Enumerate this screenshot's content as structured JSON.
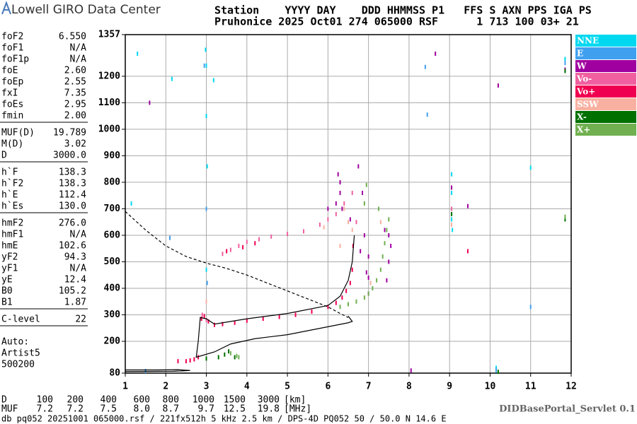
{
  "header": {
    "logo": "Lowell GIRO Data Center",
    "line1": "Station    YYYY DAY    DDD HHMMSS P1   FFS S AXN PPS IGA PS",
    "line2": "Pruhonice 2025 Oct01 274 065000 RSF      1 713 100 03+ 21"
  },
  "parameters": [
    [
      [
        "foF2",
        "6.550"
      ],
      [
        "foF1",
        "N/A"
      ],
      [
        "foF1p",
        "N/A"
      ],
      [
        "foE",
        "2.60"
      ],
      [
        "foEp",
        "2.55"
      ],
      [
        "fxI",
        "7.35"
      ],
      [
        "foEs",
        "2.95"
      ],
      [
        "fmin",
        "2.00"
      ]
    ],
    [
      [
        "MUF(D)",
        "19.789"
      ],
      [
        "M(D)",
        "3.02"
      ],
      [
        "D",
        "3000.0"
      ]
    ],
    [
      [
        "h`F",
        "138.3"
      ],
      [
        "h`F2",
        "138.3"
      ],
      [
        "h`E",
        "112.4"
      ],
      [
        "h`Es",
        "130.0"
      ]
    ],
    [
      [
        "hmF2",
        "276.0"
      ],
      [
        "hmF1",
        "N/A"
      ],
      [
        "hmE",
        "102.6"
      ],
      [
        "yF2",
        "94.3"
      ],
      [
        "yF1",
        "N/A"
      ],
      [
        "yE",
        "12.4"
      ],
      [
        "B0",
        "105.2"
      ],
      [
        "B1",
        "1.87"
      ]
    ],
    [
      [
        "C-level",
        "22"
      ]
    ]
  ],
  "autoscaling": [
    "Auto:",
    "Artist5",
    "500200"
  ],
  "chart_data": {
    "type": "scatter",
    "xlim": [
      1,
      12
    ],
    "xticks": [
      1,
      2,
      3,
      4,
      5,
      6,
      7,
      8,
      9,
      10,
      11,
      12
    ],
    "ylim": [
      80,
      1357
    ],
    "yticks": [
      80,
      200,
      300,
      400,
      500,
      600,
      700,
      800,
      900,
      1000,
      1100,
      1200,
      1357
    ],
    "grid": true,
    "legend": "right",
    "series": [
      {
        "name": "NNE",
        "color": "#00d8f0",
        "x": [
          1.3,
          2.98,
          3.0,
          3.0,
          3.02,
          3.0,
          3.18,
          9.05,
          9.05,
          9.05,
          9.07,
          10.15,
          10.15,
          11.0,
          11.85,
          1.15,
          2.15
        ],
        "values": [
          1285,
          1300,
          1240,
          1050,
          860,
          470,
          1185,
          830,
          760,
          660,
          620,
          100,
          90,
          855,
          1265,
          720,
          1190
        ]
      },
      {
        "name": "E",
        "color": "#40a0f0",
        "x": [
          2.95,
          3.0,
          3.02,
          2.1,
          8.4,
          8.45,
          11.0,
          11.85,
          10.15,
          1.5
        ],
        "values": [
          1240,
          700,
          420,
          590,
          1235,
          1055,
          330,
          1250,
          92,
          88
        ]
      },
      {
        "name": "W",
        "color": "#a000a0",
        "x": [
          1.6,
          9.45,
          10.2,
          11.85,
          6.3,
          6.0,
          6.55,
          9.05,
          8.65,
          6.75,
          6.85,
          6.9,
          7.0,
          7.0,
          7.0,
          7.45,
          7.5,
          7.55,
          7.5,
          7.4,
          6.35,
          6.3,
          8.05,
          6.2,
          6.25,
          6.8,
          6.95
        ],
        "values": [
          1100,
          710,
          1165,
          1225,
          800,
          700,
          660,
          780,
          1285,
          860,
          760,
          600,
          520,
          440,
          380,
          430,
          500,
          560,
          600,
          620,
          700,
          760,
          90,
          720,
          830,
          540,
          460
        ]
      },
      {
        "name": "Vo-",
        "color": "#f060a0",
        "x": [
          3.4,
          3.6,
          3.8,
          4.0,
          4.3,
          4.6,
          5.0,
          5.4,
          5.8,
          6.0,
          6.2,
          6.4,
          6.6,
          6.7,
          2.9,
          3.0,
          9.05
        ],
        "values": [
          530,
          545,
          560,
          575,
          585,
          595,
          605,
          615,
          640,
          660,
          680,
          720,
          760,
          650,
          300,
          280,
          700
        ]
      },
      {
        "name": "Vo+",
        "color": "#f00050",
        "x": [
          2.88,
          2.95,
          3.05,
          3.2,
          3.4,
          3.7,
          4.0,
          4.4,
          4.8,
          5.2,
          5.6,
          6.0,
          6.2,
          6.35,
          6.45,
          6.55,
          6.6,
          6.62,
          2.3,
          2.5,
          2.6,
          2.7,
          2.8,
          3.5,
          3.9,
          4.2,
          9.45
        ],
        "values": [
          285,
          295,
          275,
          262,
          265,
          270,
          278,
          285,
          292,
          300,
          312,
          330,
          345,
          365,
          390,
          420,
          470,
          560,
          125,
          125,
          128,
          132,
          140,
          540,
          555,
          570,
          540
        ]
      },
      {
        "name": "SSW",
        "color": "#f8b0a0",
        "x": [
          6.4,
          6.5,
          6.6,
          6.3,
          5.9,
          7.05,
          7.3,
          3.0,
          9.05
        ],
        "values": [
          700,
          650,
          620,
          560,
          630,
          420,
          650,
          350,
          640
        ]
      },
      {
        "name": "X-",
        "color": "#007000",
        "x": [
          3.3,
          3.45,
          3.55,
          3.7,
          3.0,
          9.05,
          11.85,
          11.85,
          10.2
        ],
        "values": [
          140,
          150,
          162,
          140,
          135,
          680,
          1220,
          660,
          85
        ]
      },
      {
        "name": "X+",
        "color": "#70b050",
        "x": [
          6.3,
          6.5,
          6.7,
          6.9,
          7.0,
          7.1,
          7.2,
          7.3,
          7.35,
          7.4,
          7.45,
          7.5,
          6.9,
          6.95,
          7.25,
          11.85,
          3.6,
          3.75,
          3.8
        ],
        "values": [
          330,
          340,
          350,
          365,
          380,
          400,
          430,
          470,
          520,
          570,
          620,
          660,
          720,
          790,
          700,
          670,
          155,
          145,
          140
        ]
      }
    ],
    "lines": [
      {
        "color": "#000000",
        "x": [
          6.65,
          6.6,
          6.5,
          6.3,
          6.0,
          5.0,
          4.0,
          3.2,
          3.0,
          2.85,
          2.8,
          2.75,
          3.2,
          3.6,
          4.2,
          5.0,
          6.0,
          6.5,
          6.6,
          6.5
        ],
        "values": [
          600,
          500,
          430,
          370,
          335,
          305,
          285,
          265,
          285,
          290,
          200,
          140,
          160,
          190,
          210,
          225,
          255,
          270,
          275,
          295
        ]
      },
      {
        "color": "#000000",
        "x": [
          1.0,
          2.2,
          2.6,
          2.3,
          1.8,
          1.0
        ],
        "values": [
          86,
          87,
          90,
          93,
          92,
          92
        ]
      },
      {
        "color": "#000000",
        "dash": true,
        "x": [
          1.0,
          1.5,
          2.0,
          2.5,
          3.0,
          3.5,
          4.0,
          4.5,
          5.0,
          5.5,
          6.0,
          6.3,
          6.5
        ],
        "values": [
          690,
          620,
          560,
          520,
          495,
          475,
          450,
          420,
          390,
          360,
          330,
          305,
          290
        ]
      }
    ]
  },
  "footer": {
    "d_label": "D",
    "d_values": [
      "100",
      "200",
      "400",
      "600",
      "800",
      "1000",
      "1500",
      "3000"
    ],
    "d_unit": "[km]",
    "muf_label": "MUF",
    "muf_values": [
      "7.2",
      "7.2",
      "7.5",
      "8.0",
      "8.7",
      "9.7",
      "12.5",
      "19.8"
    ],
    "muf_unit": "[MHz]",
    "servlet": "DIDBasePortal_Servlet 0.1",
    "info": "db pq052 20251001 065000.rsf / 221fx512h 5 kHz 2.5 km / DPS-4D PQ052 50 / 50.0 N 14.6 E"
  }
}
